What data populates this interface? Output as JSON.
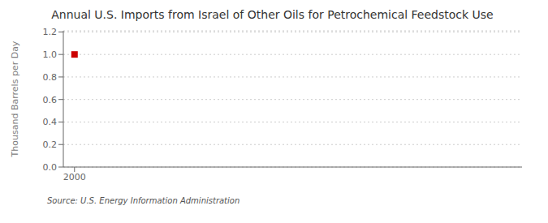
{
  "chart_data": {
    "type": "scatter",
    "title": "Annual U.S. Imports from Israel of Other Oils for Petrochemical Feedstock Use",
    "ylabel": "Thousand Barrels per Day",
    "annotation": "Source: U.S. Energy Information Administration",
    "x": [
      2000
    ],
    "values": [
      1.0
    ],
    "color": "#cc0000",
    "marker": "square",
    "xlim": [
      1999.4,
      2024
    ],
    "xticks": [
      2000
    ],
    "ylim": [
      0.0,
      1.21
    ],
    "yticks": [
      {
        "value": 0.0,
        "label": "0.0"
      },
      {
        "value": 0.2,
        "label": "0.2"
      },
      {
        "value": 0.4,
        "label": "0.4"
      },
      {
        "value": 0.6,
        "label": "0.6"
      },
      {
        "value": 0.8,
        "label": "0.8"
      },
      {
        "value": 1.0,
        "label": "1.0"
      },
      {
        "value": 1.2,
        "label": "1.2"
      }
    ],
    "grid": true
  }
}
